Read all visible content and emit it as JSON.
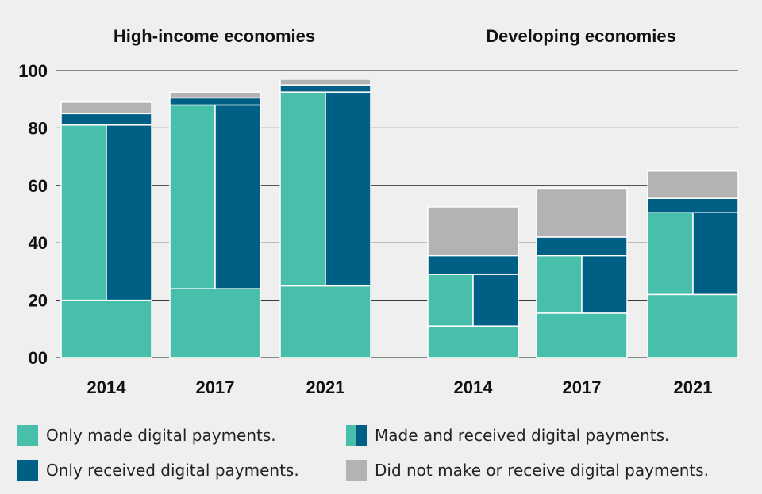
{
  "chart_data": {
    "type": "bar",
    "stacked": true,
    "groups": [
      {
        "title": "High-income economies",
        "categories": [
          "2014",
          "2017",
          "2021"
        ],
        "segments": [
          {
            "base": 20,
            "split_low": 81,
            "split_high": 81,
            "received": 4,
            "none": 4
          },
          {
            "base": 24,
            "split_low": 88,
            "split_high": 88,
            "received": 2.5,
            "none": 2
          },
          {
            "base": 25,
            "split_low": 92.5,
            "split_high": 92.5,
            "received": 2.5,
            "none": 2
          }
        ]
      },
      {
        "title": "Developing economies",
        "categories": [
          "2014",
          "2017",
          "2021"
        ],
        "segments": [
          {
            "base": 11,
            "split_low": 29,
            "split_high": 29,
            "received": 6.5,
            "none": 17
          },
          {
            "base": 15.5,
            "split_low": 35.5,
            "split_high": 35.5,
            "received": 6.5,
            "none": 17
          },
          {
            "base": 22,
            "split_low": 50.5,
            "split_high": 50.5,
            "received": 5,
            "none": 9.5
          }
        ]
      }
    ],
    "series": [
      {
        "name": "Only made digital payments."
      },
      {
        "name": "Made and received digital payments."
      },
      {
        "name": "Only received digital payments."
      },
      {
        "name": "Did not make or receive digital payments."
      }
    ],
    "y_ticks": [
      "00",
      "20",
      "40",
      "60",
      "80",
      "100"
    ],
    "ylim": [
      0,
      100
    ],
    "grid": true,
    "legend_position": "bottom",
    "colors": {
      "made": "#48bfaa",
      "received": "#005f85",
      "none": "#b3b3b5",
      "grid": "#222222"
    }
  }
}
